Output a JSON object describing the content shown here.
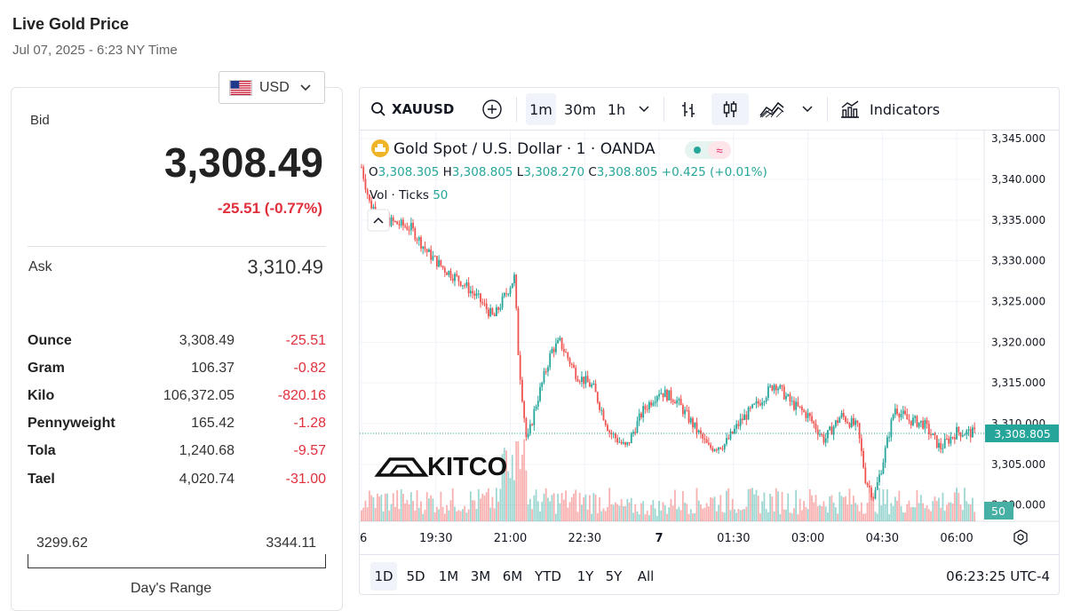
{
  "header": {
    "title": "Live Gold Price",
    "date": "Jul 07, 2025 - 6:23 NY Time"
  },
  "currency": {
    "selected": "USD"
  },
  "quote": {
    "bid_label": "Bid",
    "bid": "3,308.49",
    "change": "-25.51 (-0.77%)",
    "ask_label": "Ask",
    "ask": "3,310.49"
  },
  "units": [
    {
      "name": "Ounce",
      "value": "3,308.49",
      "change": "-25.51"
    },
    {
      "name": "Gram",
      "value": "106.37",
      "change": "-0.82"
    },
    {
      "name": "Kilo",
      "value": "106,372.05",
      "change": "-820.16"
    },
    {
      "name": "Pennyweight",
      "value": "165.42",
      "change": "-1.28"
    },
    {
      "name": "Tola",
      "value": "1,240.68",
      "change": "-9.57"
    },
    {
      "name": "Tael",
      "value": "4,020.74",
      "change": "-31.00"
    }
  ],
  "day_range": {
    "low": "3299.62",
    "high": "3344.11",
    "label": "Day's Range"
  },
  "toolbar": {
    "symbol": "XAUUSD",
    "intervals": [
      "1m",
      "30m",
      "1h"
    ],
    "active_interval": "1m",
    "indicators_label": "Indicators"
  },
  "legend": {
    "title": "Gold Spot / U.S. Dollar · 1 · OANDA",
    "o_label": "O",
    "o": "3,308.305",
    "h_label": "H",
    "h": "3,308.805",
    "l_label": "L",
    "l": "3,308.270",
    "c_label": "C",
    "c": "3,308.805",
    "change": "+0.425 (+0.01%)",
    "vol_label": "Vol · Ticks",
    "vol_value": "50"
  },
  "watermark": "KITCO",
  "price_badge": "3,308.805",
  "volume_badge": "50",
  "bottom": {
    "ranges": [
      "1D",
      "5D",
      "1M",
      "3M",
      "6M",
      "YTD",
      "1Y",
      "5Y",
      "All"
    ],
    "active_range": "1D",
    "clock": "06:23:25 UTC-4"
  },
  "colors": {
    "up": "#26a69a",
    "down": "#ef5350",
    "negative_text": "#e0303c",
    "price_badge": "#26a69a"
  },
  "chart_data": {
    "type": "candlestick",
    "title": "Gold Spot / U.S. Dollar · 1 · OANDA",
    "y_ticks": [
      "3,345.000",
      "3,340.000",
      "3,335.000",
      "3,330.000",
      "3,325.000",
      "3,320.000",
      "3,315.000",
      "3,310.000",
      "3,305.000",
      "3,300.000"
    ],
    "ylim": [
      3298,
      3346
    ],
    "x_ticks": [
      "6",
      "19:30",
      "21:00",
      "22:30",
      "7",
      "01:30",
      "03:00",
      "04:30",
      "06:00"
    ],
    "close_path": [
      {
        "t": "18:00",
        "price": 3341.5
      },
      {
        "t": "18:10",
        "price": 3337.0
      },
      {
        "t": "18:30",
        "price": 3335.0
      },
      {
        "t": "19:00",
        "price": 3334.0
      },
      {
        "t": "19:20",
        "price": 3331.0
      },
      {
        "t": "19:40",
        "price": 3329.0
      },
      {
        "t": "20:00",
        "price": 3327.5
      },
      {
        "t": "20:20",
        "price": 3325.5
      },
      {
        "t": "20:40",
        "price": 3323.0
      },
      {
        "t": "20:55",
        "price": 3326.0
      },
      {
        "t": "21:05",
        "price": 3328.0
      },
      {
        "t": "21:10",
        "price": 3318.0
      },
      {
        "t": "21:20",
        "price": 3307.5
      },
      {
        "t": "21:30",
        "price": 3312.0
      },
      {
        "t": "21:50",
        "price": 3319.0
      },
      {
        "t": "22:00",
        "price": 3320.0
      },
      {
        "t": "22:20",
        "price": 3316.0
      },
      {
        "t": "22:40",
        "price": 3314.5
      },
      {
        "t": "23:00",
        "price": 3309.0
      },
      {
        "t": "23:20",
        "price": 3307.0
      },
      {
        "t": "23:40",
        "price": 3311.5
      },
      {
        "t": "00:00",
        "price": 3314.0
      },
      {
        "t": "00:20",
        "price": 3313.0
      },
      {
        "t": "00:40",
        "price": 3310.0
      },
      {
        "t": "01:00",
        "price": 3307.0
      },
      {
        "t": "01:20",
        "price": 3307.5
      },
      {
        "t": "01:40",
        "price": 3310.5
      },
      {
        "t": "02:00",
        "price": 3312.5
      },
      {
        "t": "02:20",
        "price": 3315.0
      },
      {
        "t": "02:40",
        "price": 3312.5
      },
      {
        "t": "03:00",
        "price": 3311.0
      },
      {
        "t": "03:20",
        "price": 3308.0
      },
      {
        "t": "03:40",
        "price": 3311.0
      },
      {
        "t": "04:00",
        "price": 3309.5
      },
      {
        "t": "04:10",
        "price": 3303.0
      },
      {
        "t": "04:20",
        "price": 3301.0
      },
      {
        "t": "04:30",
        "price": 3305.0
      },
      {
        "t": "04:45",
        "price": 3312.0
      },
      {
        "t": "05:00",
        "price": 3310.5
      },
      {
        "t": "05:20",
        "price": 3310.0
      },
      {
        "t": "05:40",
        "price": 3307.0
      },
      {
        "t": "06:00",
        "price": 3309.0
      },
      {
        "t": "06:23",
        "price": 3308.805
      }
    ],
    "last_price": 3308.805,
    "last_volume": 50
  }
}
